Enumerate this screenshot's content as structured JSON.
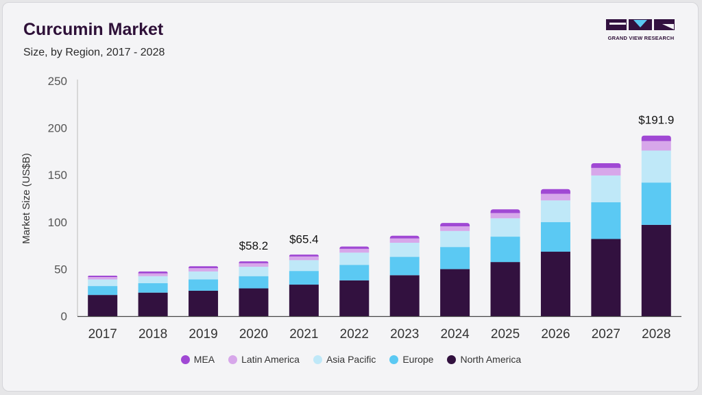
{
  "header": {
    "title": "Curcumin Market",
    "subtitle": "Size, by Region, 2017 - 2028"
  },
  "logo": {
    "text": "GRAND VIEW RESEARCH"
  },
  "colors": {
    "North America": "#32113f",
    "Europe": "#5bc9f3",
    "Asia Pacific": "#bfe8f8",
    "Latin America": "#d7a7ea",
    "MEA": "#a048d4"
  },
  "chart_data": {
    "type": "bar",
    "stacked": true,
    "title": "Curcumin Market",
    "subtitle": "Size, by Region, 2017 - 2028",
    "xlabel": "",
    "ylabel": "Market Size (US$B)",
    "ylim": [
      0,
      250
    ],
    "yticks": [
      0,
      50,
      100,
      150,
      200,
      250
    ],
    "categories": [
      "2017",
      "2018",
      "2019",
      "2020",
      "2021",
      "2022",
      "2023",
      "2024",
      "2025",
      "2026",
      "2027",
      "2028"
    ],
    "series": [
      {
        "name": "North America",
        "values": [
          22.5,
          25,
          27,
          29.5,
          33.5,
          38,
          43.5,
          50,
          57.5,
          68.5,
          82,
          97
        ]
      },
      {
        "name": "Europe",
        "values": [
          9.5,
          10,
          12,
          13,
          14.5,
          16.5,
          19.5,
          23.5,
          27,
          31.5,
          39,
          45
        ]
      },
      {
        "name": "Asia Pacific",
        "values": [
          7,
          7.5,
          8.5,
          10,
          11.5,
          13,
          15,
          17,
          19.5,
          23,
          28.5,
          34
        ]
      },
      {
        "name": "Latin America",
        "values": [
          2.5,
          3,
          3.5,
          3.7,
          3.9,
          4,
          4.5,
          5,
          5.5,
          7,
          8,
          10
        ]
      },
      {
        "name": "MEA",
        "values": [
          1.5,
          2,
          2,
          2,
          2,
          2.5,
          3,
          3.5,
          4,
          5,
          5,
          5.9
        ]
      }
    ],
    "annotations": [
      {
        "category": "2020",
        "label": "$58.2"
      },
      {
        "category": "2021",
        "label": "$65.4"
      },
      {
        "category": "2028",
        "label": "$191.9"
      }
    ],
    "legend": [
      "MEA",
      "Latin America",
      "Asia Pacific",
      "Europe",
      "North America"
    ],
    "legend_position": "bottom-center"
  }
}
